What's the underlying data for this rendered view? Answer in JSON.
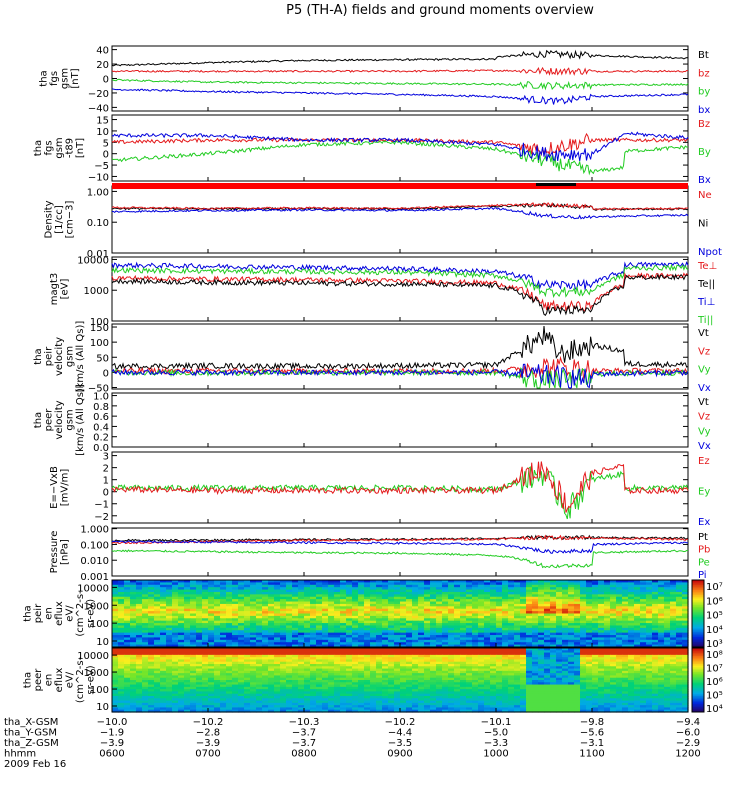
{
  "title": "P5 (TH-A) fields and ground moments overview",
  "chart_data": [
    {
      "type": "line",
      "ylabel_lines": [
        "tha",
        "fgs",
        "gsm",
        "[nT]"
      ],
      "yticks": [
        "40",
        "20",
        "0",
        "−20",
        "−40"
      ],
      "ylim": [
        -45,
        45
      ],
      "legend": [
        {
          "name": "Bt",
          "color": "#000000"
        },
        {
          "name": "bz",
          "color": "#e41a1c"
        },
        {
          "name": "by",
          "color": "#22cc22"
        },
        {
          "name": "bx",
          "color": "#0000dd"
        }
      ],
      "series": [
        {
          "name": "Bt",
          "color": "#000000",
          "x": [
            600,
            700,
            800,
            900,
            960,
            1000,
            1030,
            1100,
            1130,
            1200
          ],
          "y": [
            18,
            22,
            25,
            26,
            27,
            30,
            34,
            32,
            30,
            28
          ]
        },
        {
          "name": "bz",
          "color": "#e41a1c",
          "x": [
            600,
            700,
            800,
            900,
            1000,
            1100,
            1200
          ],
          "y": [
            10,
            10,
            10,
            10,
            11,
            10,
            10
          ]
        },
        {
          "name": "by",
          "color": "#22cc22",
          "x": [
            600,
            700,
            800,
            900,
            1000,
            1040,
            1100,
            1200
          ],
          "y": [
            -2,
            -5,
            -6,
            -7,
            -8,
            -10,
            -9,
            -8
          ]
        },
        {
          "name": "bx",
          "color": "#0000dd",
          "x": [
            600,
            700,
            800,
            900,
            1000,
            1040,
            1100,
            1200
          ],
          "y": [
            -15,
            -18,
            -20,
            -22,
            -25,
            -32,
            -25,
            -22
          ]
        }
      ]
    },
    {
      "type": "line",
      "ylabel_lines": [
        "tha",
        "fgs",
        "gsm",
        "-t89",
        "[nT]"
      ],
      "yticks": [
        "15",
        "10",
        "5",
        "0",
        "−5",
        "−10"
      ],
      "ylim": [
        -12,
        17
      ],
      "legend": [
        {
          "name": "Bz",
          "color": "#e41a1c"
        },
        {
          "name": "By",
          "color": "#22cc22"
        },
        {
          "name": "Bx",
          "color": "#0000dd"
        }
      ],
      "series": [
        {
          "name": "Bz",
          "color": "#e41a1c",
          "x": [
            600,
            700,
            800,
            900,
            1000,
            1030,
            1060,
            1100,
            1200
          ],
          "y": [
            5,
            6,
            6,
            6,
            5,
            2,
            6,
            6,
            6
          ]
        },
        {
          "name": "By",
          "color": "#22cc22",
          "x": [
            600,
            700,
            800,
            900,
            1000,
            1030,
            1060,
            1080,
            1100,
            1200
          ],
          "y": [
            -3,
            0,
            4,
            5,
            2,
            -3,
            -8,
            -6,
            0,
            3
          ]
        },
        {
          "name": "Bx",
          "color": "#0000dd",
          "x": [
            600,
            700,
            800,
            900,
            1000,
            1030,
            1060,
            1080,
            1100,
            1200
          ],
          "y": [
            8,
            8,
            6,
            6,
            4,
            0,
            0,
            8,
            10,
            7
          ]
        }
      ]
    },
    {
      "type": "line",
      "ylabel_lines": [
        "Density",
        "[1/cc]",
        "[cm−3]"
      ],
      "yticks": [
        "1.00",
        "0.10",
        "0.01"
      ],
      "ylog": true,
      "ylim": [
        0.01,
        1.5
      ],
      "legend": [
        {
          "name": "Ne",
          "color": "#e41a1c"
        },
        {
          "name": "Ni",
          "color": "#000000"
        },
        {
          "name": "Npot",
          "color": "#0000dd"
        }
      ],
      "series": [
        {
          "name": "Ni",
          "color": "#000000",
          "x": [
            600,
            700,
            800,
            900,
            1000,
            1030,
            1060,
            1100,
            1200
          ],
          "y": [
            0.28,
            0.27,
            0.28,
            0.27,
            0.33,
            0.36,
            0.3,
            0.26,
            0.27
          ]
        },
        {
          "name": "Ne",
          "color": "#e41a1c",
          "x": [
            600,
            700,
            800,
            900,
            1000,
            1030,
            1060,
            1100,
            1200
          ],
          "y": [
            0.3,
            0.28,
            0.29,
            0.28,
            0.35,
            0.38,
            0.32,
            0.27,
            0.28
          ]
        },
        {
          "name": "Npot",
          "color": "#0000dd",
          "x": [
            600,
            700,
            800,
            900,
            1000,
            1030,
            1060,
            1100,
            1200
          ],
          "y": [
            0.22,
            0.24,
            0.25,
            0.24,
            0.28,
            0.16,
            0.14,
            0.15,
            0.17
          ]
        }
      ]
    },
    {
      "type": "line",
      "ylabel_lines": [
        "magt3",
        "[eV]"
      ],
      "yticks": [
        "10000",
        "1000",
        "100"
      ],
      "ylog": true,
      "ylim": [
        100,
        12000
      ],
      "legend": [
        {
          "name": "Te⊥",
          "color": "#e41a1c"
        },
        {
          "name": "Te||",
          "color": "#000000"
        },
        {
          "name": "Ti⊥",
          "color": "#0000dd"
        },
        {
          "name": "Ti||",
          "color": "#22cc22"
        }
      ],
      "series": [
        {
          "name": "Ti⊥",
          "color": "#0000dd",
          "x": [
            600,
            700,
            800,
            900,
            1000,
            1030,
            1060,
            1080,
            1100,
            1200
          ],
          "y": [
            6500,
            6000,
            5500,
            5000,
            4000,
            1500,
            1500,
            4000,
            6500,
            7000
          ]
        },
        {
          "name": "Ti||",
          "color": "#22cc22",
          "x": [
            600,
            700,
            800,
            900,
            1000,
            1030,
            1060,
            1080,
            1100,
            1200
          ],
          "y": [
            4500,
            4200,
            4000,
            3800,
            3000,
            900,
            900,
            3000,
            5000,
            5500
          ]
        },
        {
          "name": "Te⊥",
          "color": "#e41a1c",
          "x": [
            600,
            700,
            800,
            900,
            1000,
            1030,
            1060,
            1080,
            1100,
            1200
          ],
          "y": [
            2500,
            2300,
            2200,
            2000,
            1700,
            300,
            300,
            1500,
            2800,
            3000
          ]
        },
        {
          "name": "Te||",
          "color": "#000000",
          "x": [
            600,
            700,
            800,
            900,
            1000,
            1030,
            1060,
            1080,
            1100,
            1200
          ],
          "y": [
            2000,
            1800,
            1700,
            1600,
            1400,
            220,
            220,
            1300,
            2500,
            2700
          ]
        }
      ]
    },
    {
      "type": "line",
      "ylabel_lines": [
        "tha",
        "peir",
        "velocity",
        "gsm",
        "[km/s (All Qs)]"
      ],
      "yticks": [
        "150",
        "100",
        "50",
        "0",
        "−50"
      ],
      "ylim": [
        -55,
        160
      ],
      "legend": [
        {
          "name": "Vt",
          "color": "#000000"
        },
        {
          "name": "Vz",
          "color": "#e41a1c"
        },
        {
          "name": "Vy",
          "color": "#22cc22"
        },
        {
          "name": "Vx",
          "color": "#0000dd"
        }
      ],
      "series": [
        {
          "name": "Vt",
          "color": "#000000",
          "x": [
            600,
            700,
            800,
            900,
            1000,
            1030,
            1040,
            1060,
            1080,
            1100,
            1200
          ],
          "y": [
            20,
            22,
            20,
            22,
            25,
            120,
            60,
            90,
            70,
            30,
            25
          ]
        },
        {
          "name": "Vz",
          "color": "#e41a1c",
          "x": [
            600,
            700,
            800,
            900,
            1000,
            1030,
            1060,
            1100,
            1200
          ],
          "y": [
            5,
            5,
            4,
            5,
            5,
            20,
            10,
            5,
            5
          ]
        },
        {
          "name": "Vy",
          "color": "#22cc22",
          "x": [
            600,
            700,
            800,
            900,
            1000,
            1030,
            1060,
            1100,
            1200
          ],
          "y": [
            0,
            -2,
            0,
            -1,
            0,
            -30,
            -20,
            -5,
            0
          ]
        },
        {
          "name": "Vx",
          "color": "#0000dd",
          "x": [
            600,
            700,
            800,
            900,
            1000,
            1030,
            1060,
            1100,
            1200
          ],
          "y": [
            0,
            0,
            -1,
            0,
            0,
            -10,
            -25,
            -5,
            0
          ]
        }
      ]
    },
    {
      "type": "line",
      "ylabel_lines": [
        "tha",
        "peer",
        "velocity",
        "gsm",
        "[km/s (All Qs)]"
      ],
      "yticks": [
        "1.0",
        "0.8",
        "0.6",
        "0.4",
        "0.2",
        "0.0"
      ],
      "ylim": [
        0,
        1.05
      ],
      "legend": [
        {
          "name": "Vt",
          "color": "#000000"
        },
        {
          "name": "Vz",
          "color": "#e41a1c"
        },
        {
          "name": "Vy",
          "color": "#22cc22"
        },
        {
          "name": "Vx",
          "color": "#0000dd"
        }
      ],
      "series": []
    },
    {
      "type": "line",
      "ylabel_lines": [
        "E=−VxB",
        "[mV/m]"
      ],
      "yticks": [
        "3",
        "2",
        "1",
        "0",
        "−1",
        "−2"
      ],
      "ylim": [
        -2.6,
        3.3
      ],
      "legend": [
        {
          "name": "Ez",
          "color": "#e41a1c"
        },
        {
          "name": "Ey",
          "color": "#22cc22"
        },
        {
          "name": "Ex",
          "color": "#0000dd"
        }
      ],
      "series": [
        {
          "name": "Ey",
          "color": "#22cc22",
          "x": [
            600,
            700,
            800,
            900,
            1000,
            1030,
            1045,
            1060,
            1080,
            1100,
            1200
          ],
          "y": [
            0.3,
            0.3,
            0.3,
            0.3,
            0.2,
            1.5,
            -1.5,
            1.0,
            1.5,
            0.3,
            0.3
          ]
        },
        {
          "name": "Ez",
          "color": "#e41a1c",
          "x": [
            600,
            700,
            800,
            900,
            1000,
            1030,
            1045,
            1060,
            1080,
            1100,
            1200
          ],
          "y": [
            0.2,
            0.1,
            0.1,
            0.1,
            0.1,
            2.0,
            -1.2,
            1.5,
            2.2,
            0.1,
            0.1
          ]
        }
      ]
    },
    {
      "type": "line",
      "ylabel_lines": [
        "Pressure",
        "[nPa]"
      ],
      "yticks": [
        "1.000",
        "0.100",
        "0.010",
        "0.001"
      ],
      "ylog": true,
      "ylim": [
        0.001,
        1.1
      ],
      "legend": [
        {
          "name": "Pt",
          "color": "#000000"
        },
        {
          "name": "Pb",
          "color": "#e41a1c"
        },
        {
          "name": "Pe",
          "color": "#22cc22"
        },
        {
          "name": "Pi",
          "color": "#0000dd"
        }
      ],
      "series": [
        {
          "name": "Pt",
          "color": "#000000",
          "x": [
            600,
            700,
            800,
            900,
            1000,
            1030,
            1100,
            1200
          ],
          "y": [
            0.18,
            0.19,
            0.2,
            0.21,
            0.24,
            0.28,
            0.27,
            0.25
          ]
        },
        {
          "name": "Pb",
          "color": "#e41a1c",
          "x": [
            600,
            700,
            800,
            900,
            1000,
            1030,
            1100,
            1200
          ],
          "y": [
            0.12,
            0.15,
            0.18,
            0.19,
            0.22,
            0.28,
            0.26,
            0.2
          ]
        },
        {
          "name": "Pi",
          "color": "#0000dd",
          "x": [
            600,
            700,
            800,
            900,
            1000,
            1030,
            1060,
            1100,
            1200
          ],
          "y": [
            0.15,
            0.14,
            0.13,
            0.12,
            0.1,
            0.035,
            0.04,
            0.1,
            0.13
          ]
        },
        {
          "name": "Pe",
          "color": "#22cc22",
          "x": [
            600,
            700,
            800,
            900,
            1000,
            1030,
            1060,
            1100,
            1200
          ],
          "y": [
            0.04,
            0.035,
            0.03,
            0.028,
            0.02,
            0.004,
            0.005,
            0.03,
            0.04
          ]
        }
      ]
    },
    {
      "type": "heatmap",
      "ylabel_lines": [
        "tha",
        "peir",
        "en",
        "eflux",
        "eV/",
        "(cm^2-s-",
        "sr-eV)"
      ],
      "yticks": [
        "10000",
        "1000",
        "100",
        "10"
      ],
      "colorbar_ticks": [
        "10⁷",
        "10⁶",
        "10⁵",
        "10⁴",
        "10³"
      ]
    },
    {
      "type": "heatmap",
      "ylabel_lines": [
        "tha",
        "peer",
        "en",
        "eflux",
        "eV/",
        "(cm^2-s-",
        "sr-eV)"
      ],
      "yticks": [
        "10000",
        "1000",
        "100",
        "10"
      ],
      "colorbar_ticks": [
        "10⁸",
        "10⁷",
        "10⁶",
        "10⁵",
        "10⁴"
      ]
    }
  ],
  "xaxis": {
    "ticks": [
      600,
      700,
      800,
      900,
      1000,
      1100,
      1200
    ],
    "rows": [
      {
        "label": "tha_X-GSM",
        "values": [
          "−10.0",
          "−10.2",
          "−10.3",
          "−10.2",
          "−10.1",
          "−9.8",
          "−9.4"
        ]
      },
      {
        "label": "tha_Y-GSM",
        "values": [
          "−1.9",
          "−2.8",
          "−3.7",
          "−4.4",
          "−5.0",
          "−5.6",
          "−6.0"
        ]
      },
      {
        "label": "tha_Z-GSM",
        "values": [
          "−3.9",
          "−3.9",
          "−3.7",
          "−3.5",
          "−3.3",
          "−3.1",
          "−2.9"
        ]
      },
      {
        "label": "hhmm",
        "values": [
          "0600",
          "0700",
          "0800",
          "0900",
          "1000",
          "1100",
          "1200"
        ]
      }
    ],
    "date": "2009 Feb 16"
  }
}
